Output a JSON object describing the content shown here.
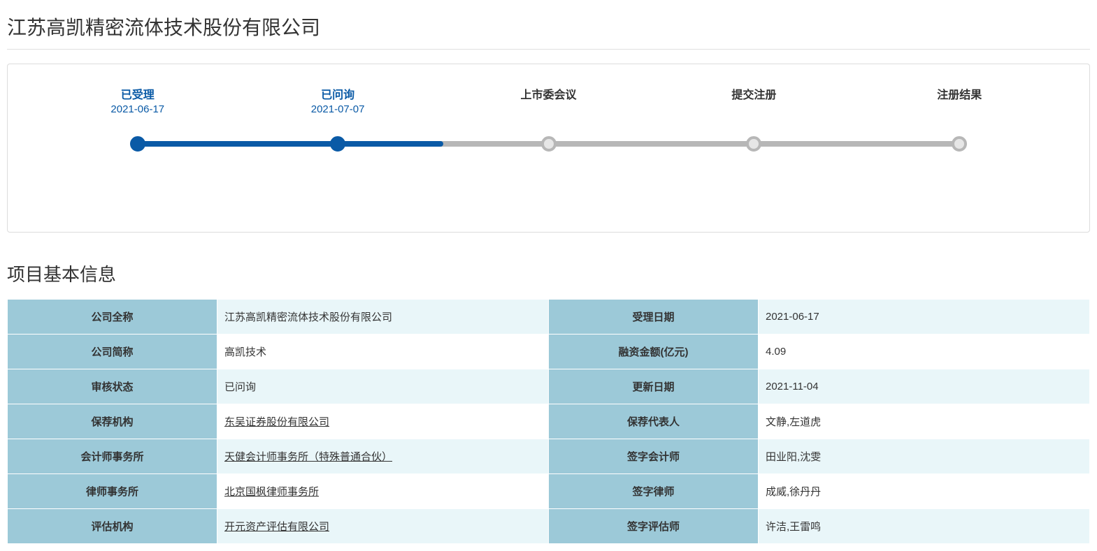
{
  "page_title": "江苏高凯精密流体技术股份有限公司",
  "timeline": {
    "track_inactive_color": "#b7b7b7",
    "track_active_color": "#0a5aa6",
    "node_active_border": "#0a5aa6",
    "node_active_fill": "#ffffff",
    "node_inactive_border": "#b7b7b7",
    "node_inactive_fill": "#e6e6e6",
    "step_active_color": "#0a5aa6",
    "step_inactive_color": "#333333",
    "steps": [
      {
        "title": "已受理",
        "date": "2021-06-17",
        "pos_pct": 11,
        "active": true
      },
      {
        "title": "已问询",
        "date": "2021-07-07",
        "pos_pct": 30,
        "active": true
      },
      {
        "title": "上市委会议",
        "date": "",
        "pos_pct": 50,
        "active": false
      },
      {
        "title": "提交注册",
        "date": "",
        "pos_pct": 69.5,
        "active": false
      },
      {
        "title": "注册结果",
        "date": "",
        "pos_pct": 89,
        "active": false
      }
    ],
    "active_until_pct": 40
  },
  "section_title": "项目基本信息",
  "table": {
    "label_bg": "#9cc9d8",
    "row_even_bg": "#e9f6f9",
    "row_odd_bg": "#ffffff",
    "text_color": "#333333",
    "rows": [
      {
        "l1": "公司全称",
        "v1": "江苏高凯精密流体技术股份有限公司",
        "v1_link": false,
        "l2": "受理日期",
        "v2": "2021-06-17",
        "even": true
      },
      {
        "l1": "公司简称",
        "v1": "高凯技术",
        "v1_link": false,
        "l2": "融资金额(亿元)",
        "v2": "4.09",
        "even": false
      },
      {
        "l1": "审核状态",
        "v1": "已问询",
        "v1_link": false,
        "l2": "更新日期",
        "v2": "2021-11-04",
        "even": true
      },
      {
        "l1": "保荐机构",
        "v1": "东吴证券股份有限公司",
        "v1_link": true,
        "l2": "保荐代表人",
        "v2": "文静,左道虎",
        "even": false
      },
      {
        "l1": "会计师事务所",
        "v1": "天健会计师事务所（特殊普通合伙）",
        "v1_link": true,
        "l2": "签字会计师",
        "v2": "田业阳,沈雯",
        "even": true
      },
      {
        "l1": "律师事务所",
        "v1": "北京国枫律师事务所",
        "v1_link": true,
        "l2": "签字律师",
        "v2": "成威,徐丹丹",
        "even": false
      },
      {
        "l1": "评估机构",
        "v1": "开元资产评估有限公司",
        "v1_link": true,
        "l2": "签字评估师",
        "v2": "许洁,王雷鸣",
        "even": true
      }
    ]
  }
}
